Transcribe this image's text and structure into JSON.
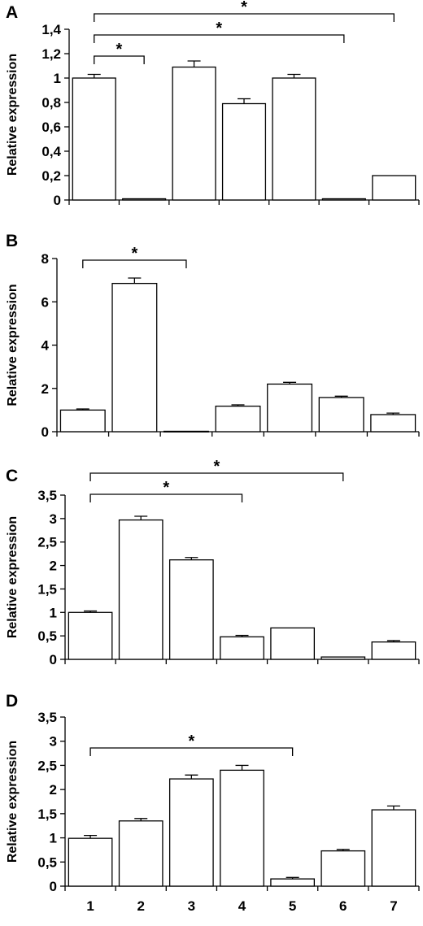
{
  "chart_data": [
    {
      "type": "bar",
      "panel": "A",
      "categories": [
        "1",
        "2",
        "3",
        "4",
        "5",
        "6",
        "7"
      ],
      "values": [
        1.0,
        0.01,
        1.09,
        0.79,
        1.0,
        0.01,
        0.2
      ],
      "errors": [
        0.03,
        0,
        0.05,
        0.04,
        0.03,
        0,
        0
      ],
      "ylabel": "Relative expression",
      "ylim": [
        0,
        1.4
      ],
      "yticks": [
        "0",
        "0,2",
        "0,4",
        "0,6",
        "0,8",
        "1",
        "1,2",
        "1,4"
      ],
      "show_category_labels": false,
      "significance": [
        {
          "from": 1,
          "to": 2,
          "label": "*"
        },
        {
          "from": 1,
          "to": 6,
          "label": "*"
        },
        {
          "from": 1,
          "to": 7,
          "label": "*"
        }
      ]
    },
    {
      "type": "bar",
      "panel": "B",
      "categories": [
        "1",
        "2",
        "3",
        "4",
        "5",
        "6",
        "7"
      ],
      "values": [
        1.0,
        6.85,
        0.02,
        1.18,
        2.2,
        1.58,
        0.79
      ],
      "errors": [
        0.05,
        0.25,
        0,
        0.06,
        0.08,
        0.06,
        0.07
      ],
      "ylabel": "Relative expression",
      "ylim": [
        0,
        8
      ],
      "yticks": [
        "0",
        "2",
        "4",
        "6",
        "8"
      ],
      "show_category_labels": false,
      "significance": [
        {
          "from": 1,
          "to": 3,
          "label": "*"
        }
      ]
    },
    {
      "type": "bar",
      "panel": "C",
      "categories": [
        "1",
        "2",
        "3",
        "4",
        "5",
        "6",
        "7"
      ],
      "values": [
        1.0,
        2.97,
        2.12,
        0.48,
        0.67,
        0.05,
        0.37
      ],
      "errors": [
        0.03,
        0.08,
        0.05,
        0.03,
        0,
        0,
        0.03
      ],
      "ylabel": "Relative expression",
      "ylim": [
        0,
        3.5
      ],
      "yticks": [
        "0",
        "0,5",
        "1",
        "1,5",
        "2",
        "2,5",
        "3",
        "3,5"
      ],
      "show_category_labels": false,
      "significance": [
        {
          "from": 1,
          "to": 4,
          "label": "*"
        },
        {
          "from": 1,
          "to": 6,
          "label": "*"
        }
      ]
    },
    {
      "type": "bar",
      "panel": "D",
      "categories": [
        "1",
        "2",
        "3",
        "4",
        "5",
        "6",
        "7"
      ],
      "values": [
        0.99,
        1.35,
        2.22,
        2.4,
        0.15,
        0.73,
        1.58
      ],
      "errors": [
        0.06,
        0.05,
        0.08,
        0.1,
        0.03,
        0.03,
        0.08
      ],
      "ylabel": "Relative expression",
      "ylim": [
        0,
        3.5
      ],
      "yticks": [
        "0",
        "0,5",
        "1",
        "1,5",
        "2",
        "2,5",
        "3",
        "3,5"
      ],
      "show_category_labels": true,
      "significance": [
        {
          "from": 1,
          "to": 5,
          "label": "*"
        }
      ]
    }
  ]
}
